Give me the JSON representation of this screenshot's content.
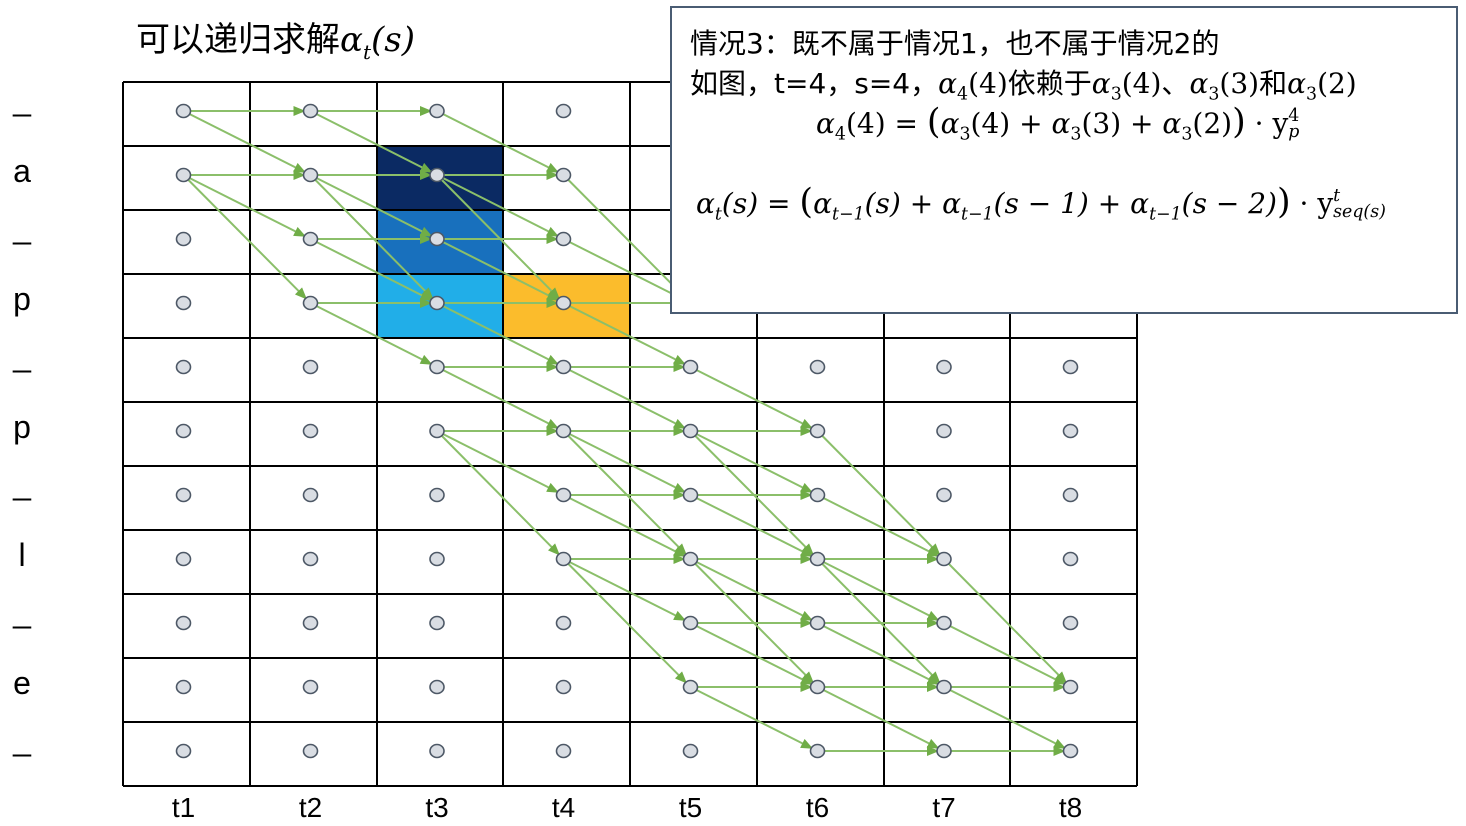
{
  "title": {
    "text": "可以递归求解",
    "symbol": "α",
    "subscript": "t",
    "arg": "(s)"
  },
  "row_labels": [
    "_",
    "a",
    "_",
    "p",
    "_",
    "p",
    "_",
    "l",
    "_",
    "e",
    "_"
  ],
  "col_labels": [
    "t1",
    "t2",
    "t3",
    "t4",
    "t5",
    "t6",
    "t7",
    "t8"
  ],
  "highlight_cells": [
    {
      "col": 3,
      "row": 2,
      "color": "#0b2a63"
    },
    {
      "col": 3,
      "row": 3,
      "color": "#1870bd"
    },
    {
      "col": 3,
      "row": 4,
      "color": "#21aee8"
    },
    {
      "col": 4,
      "row": 4,
      "color": "#fbbc2c"
    }
  ],
  "colors": {
    "grid": "#000000",
    "node_fill": "#d9dde3",
    "node_stroke": "#4d5866",
    "arrow": "#8bbf6a",
    "arrow_head": "#70ad47",
    "info_border": "#4a5c73"
  },
  "info": {
    "line1": "情况3：既不属于情况1，也不属于情况2的",
    "line2_prefix": "如图，t=4，s=4，",
    "line2_a": "α",
    "line2_a_sub": "4",
    "line2_a_arg": "(4)",
    "line2_mid": "依赖于",
    "line2_b_arg": "(4)",
    "line2_sep": "、",
    "line2_c_arg": "(3)",
    "line2_and": "和",
    "line2_d_arg": "(2)",
    "sub3": "3",
    "eq1_y": "y",
    "eq1_sup": "4",
    "eq1_sub": "p",
    "eq2_sub_t": "t",
    "eq2_sub_t1": "t−1",
    "eq2_sup": "t",
    "eq2_sub_seq": "seq(s)",
    "eq2_s": "(s)",
    "eq2_s1": "(s − 1)",
    "eq2_s2": "(s − 2)",
    "eq1_lhs_arg": "(4)",
    "plus": "+",
    "eq": "=",
    "dot": "·",
    "lparen": "(",
    "rparen": ")"
  }
}
